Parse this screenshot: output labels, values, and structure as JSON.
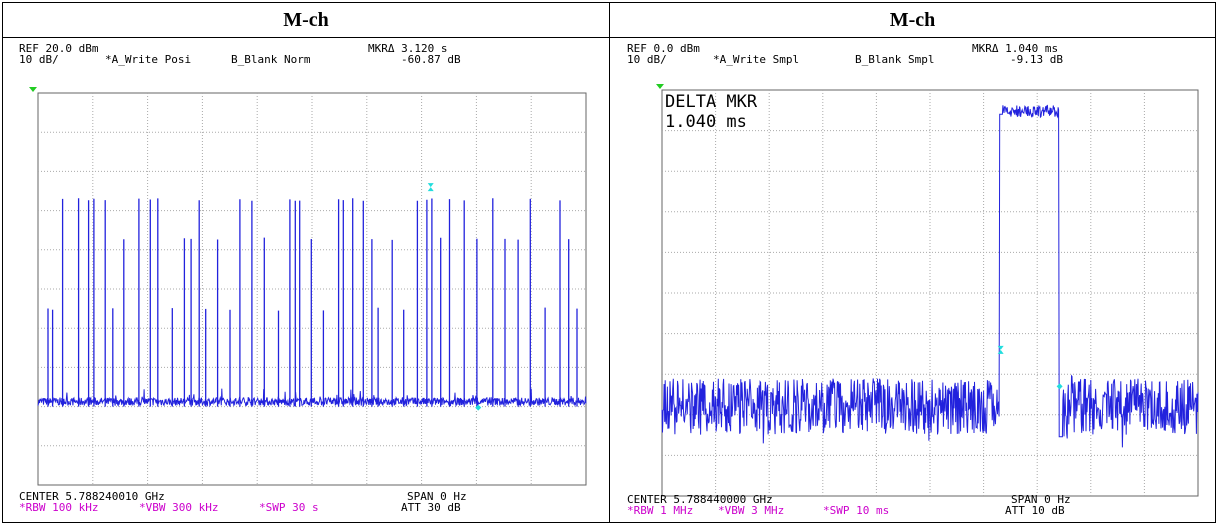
{
  "page": {
    "panels": [
      {
        "title": "M-ch",
        "ref": "REF 20.0 dBm",
        "scale": "10 dB/",
        "trace_a": "*A_Write Posi",
        "trace_b": "B_Blank Norm",
        "mkr_label": "MKRΔ 3.120 s",
        "mkr_value": "-60.87 dB",
        "center": "CENTER 5.788240010 GHz",
        "span": "SPAN 0 Hz",
        "rbw": "*RBW 100 kHz",
        "vbw": "*VBW 300 kHz",
        "swp": "*SWP 30 s",
        "att": "ATT 30 dB",
        "delta_title": "",
        "delta_value": ""
      },
      {
        "title": "M-ch",
        "ref": "REF 0.0 dBm",
        "scale": "10 dB/",
        "trace_a": "*A_Write Smpl",
        "trace_b": "B_Blank Smpl",
        "mkr_label": "MKRΔ 1.040 ms",
        "mkr_value": "-9.13 dB",
        "center": "CENTER 5.788440000 GHz",
        "span": "SPAN 0 Hz",
        "rbw": "*RBW 1 MHz",
        "vbw": "*VBW 3 MHz",
        "swp": "*SWP 10 ms",
        "att": "ATT 10 dB",
        "delta_title": "DELTA MKR",
        "delta_value": "1.040 ms"
      }
    ]
  },
  "chart_data": [
    {
      "type": "line",
      "trace_color": "#2222dd",
      "marker_color": "#22dddd",
      "x_unit": "s",
      "xlim": [
        0,
        30
      ],
      "y_unit": "dBm",
      "ylim": [
        -80,
        20
      ],
      "grid": true,
      "baseline_dbm": -60,
      "burst_peaks_dbm": [
        -7,
        -17,
        -35
      ],
      "marker_delta_s": 3.12,
      "marker_delta_db": -60.87
    },
    {
      "type": "line",
      "trace_color": "#2222dd",
      "marker_color": "#22dddd",
      "x_unit": "ms",
      "xlim": [
        0,
        10
      ],
      "y_unit": "dBm",
      "ylim": [
        -100,
        0
      ],
      "grid": true,
      "burst_start_ms": 6.3,
      "burst_end_ms": 7.4,
      "burst_level_dbm": -5,
      "noise_level_dbm": -78,
      "marker_delta_ms": 1.04,
      "marker_delta_db": -9.13
    }
  ]
}
